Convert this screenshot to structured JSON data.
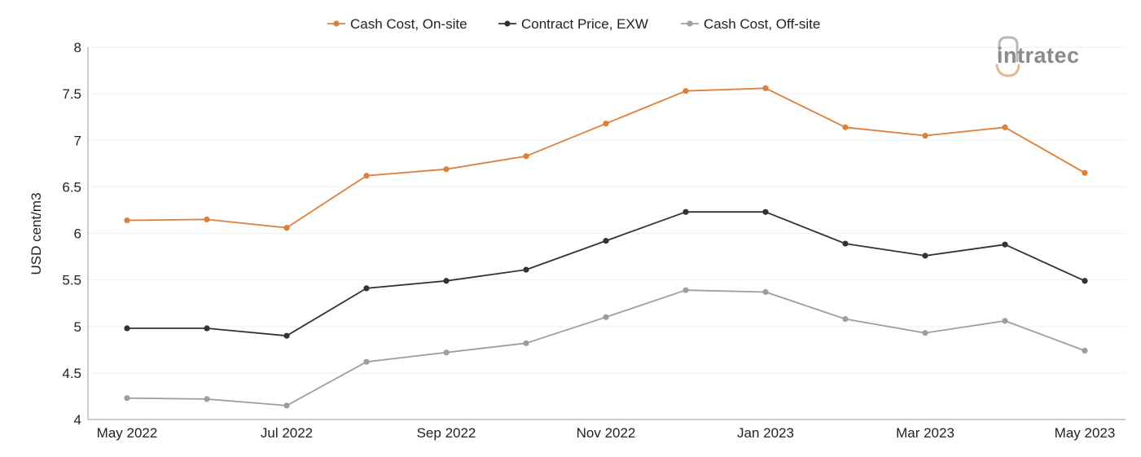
{
  "logo": {
    "text": "intratec",
    "colors": {
      "arc": "#e6b98c",
      "text": "#8a8a8a"
    }
  },
  "chart_data": {
    "type": "line",
    "title": "",
    "xlabel": "",
    "ylabel": "USD cent/m3",
    "ylim": [
      4,
      8
    ],
    "yticks": [
      "4",
      "4.5",
      "5",
      "5.5",
      "6",
      "6.5",
      "7",
      "7.5",
      "8"
    ],
    "x": [
      "May 2022",
      "Jun 2022",
      "Jul 2022",
      "Aug 2022",
      "Sep 2022",
      "Oct 2022",
      "Nov 2022",
      "Dec 2022",
      "Jan 2023",
      "Feb 2023",
      "Mar 2023",
      "Apr 2023",
      "May 2023"
    ],
    "xtick_labels": [
      "May 2022",
      "",
      "Jul 2022",
      "",
      "Sep 2022",
      "",
      "Nov 2022",
      "",
      "Jan 2023",
      "",
      "Mar 2023",
      "",
      "May 2023"
    ],
    "grid": true,
    "legend_position": "top-center",
    "series": [
      {
        "name": "Cash Cost, On-site",
        "color": "#e07f38",
        "values": [
          6.14,
          6.15,
          6.06,
          6.62,
          6.69,
          6.83,
          7.18,
          7.53,
          7.56,
          7.14,
          7.05,
          7.14,
          6.65
        ]
      },
      {
        "name": "Contract Price, EXW",
        "color": "#333333",
        "values": [
          4.98,
          4.98,
          4.9,
          5.41,
          5.49,
          5.61,
          5.92,
          6.23,
          6.23,
          5.89,
          5.76,
          5.88,
          5.49
        ]
      },
      {
        "name": "Cash Cost, Off-site",
        "color": "#9e9e9e",
        "values": [
          4.23,
          4.22,
          4.15,
          4.62,
          4.72,
          4.82,
          5.1,
          5.39,
          5.37,
          5.08,
          4.93,
          5.06,
          4.74
        ]
      }
    ]
  }
}
